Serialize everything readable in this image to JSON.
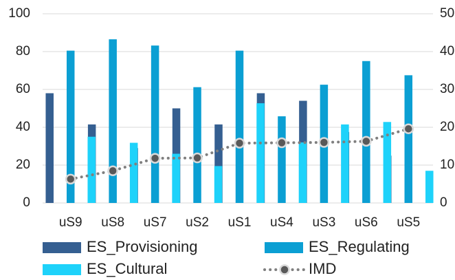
{
  "chart_data": {
    "type": "bar_line",
    "categories": [
      "uS9",
      "uS8",
      "uS7",
      "uS2",
      "uS1",
      "uS4",
      "uS3",
      "uS6",
      "uS5"
    ],
    "series": [
      {
        "name": "ES_Provisioning",
        "color": "#355f91",
        "values": [
          58,
          41.5,
          29,
          50,
          41.5,
          58,
          54,
          37.5,
          25
        ]
      },
      {
        "name": "ES_Regulating",
        "color": "#0b9fd3",
        "values": [
          80.5,
          86.5,
          83.2,
          61.2,
          80.5,
          45.8,
          62.5,
          75,
          67.5
        ]
      },
      {
        "name": "ES_Cultural",
        "color": "#1ed2fa",
        "values": [
          35,
          31.8,
          26,
          19.5,
          52.7,
          32,
          41.5,
          42.8,
          17
        ]
      },
      {
        "name": "IMD",
        "color": "#7f7f7f",
        "axis": "y2",
        "values": [
          6.3,
          8.5,
          11.8,
          11.9,
          15.8,
          15.9,
          16,
          16.3,
          19.6
        ]
      }
    ],
    "ylim": [
      0,
      100
    ],
    "yticks": [
      0,
      20,
      40,
      60,
      80,
      100
    ],
    "y2lim": [
      0,
      50
    ],
    "y2ticks": [
      0,
      10,
      20,
      30,
      40,
      50
    ],
    "grid": true
  }
}
